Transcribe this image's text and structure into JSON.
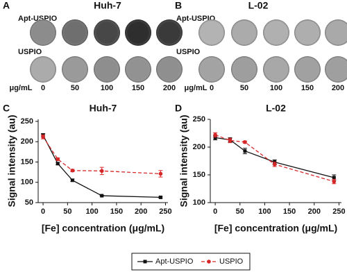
{
  "panels": [
    {
      "letter": "A",
      "title": "Huh-7",
      "rows": [
        "Apt-USPIO",
        "USPIO"
      ],
      "unit": "μg/mL",
      "concentrations": [
        0,
        50,
        100,
        150,
        200
      ]
    },
    {
      "letter": "B",
      "title": "L-02",
      "rows": [
        "Apt-USPIO",
        "USPIO"
      ],
      "unit": "μg/mL",
      "concentrations": [
        0,
        50,
        100,
        150,
        200
      ]
    }
  ],
  "chart_data": [
    {
      "type": "line",
      "panel": "C",
      "title": "Huh-7",
      "x_label": "[Fe] concentration (μg/mL)",
      "y_label": "Signal intensity (au)",
      "x": [
        0,
        30,
        60,
        120,
        240
      ],
      "xlim": [
        -10,
        255
      ],
      "xticks": [
        0,
        50,
        100,
        150,
        200,
        250
      ],
      "ylim": [
        50,
        255
      ],
      "yticks": [
        50,
        100,
        150,
        200,
        250
      ],
      "series": [
        {
          "name": "Apt-USPIO",
          "color": "#111111",
          "marker": "square",
          "linestyle": "solid",
          "values": [
            216,
            146,
            105,
            67,
            63
          ],
          "errors": [
            4,
            3,
            3,
            1,
            2
          ]
        },
        {
          "name": "USPIO",
          "color": "#d62728",
          "marker": "circle",
          "linestyle": "dashed",
          "values": [
            212,
            157,
            129,
            128,
            121
          ],
          "errors": [
            5,
            3,
            3,
            9,
            8
          ]
        }
      ]
    },
    {
      "type": "line",
      "panel": "D",
      "title": "L-02",
      "x_label": "[Fe] concentration (μg/mL)",
      "y_label": "Signal intensity (au)",
      "x": [
        0,
        30,
        60,
        120,
        240
      ],
      "xlim": [
        -10,
        255
      ],
      "xticks": [
        0,
        50,
        100,
        150,
        200,
        250
      ],
      "ylim": [
        100,
        250
      ],
      "yticks": [
        100,
        150,
        200,
        250
      ],
      "series": [
        {
          "name": "Apt-USPIO",
          "color": "#111111",
          "marker": "square",
          "linestyle": "solid",
          "values": [
            217,
            213,
            193,
            173,
            145
          ],
          "errors": [
            4,
            4,
            5,
            4,
            5
          ]
        },
        {
          "name": "USPIO",
          "color": "#d62728",
          "marker": "circle",
          "linestyle": "dashed",
          "values": [
            222,
            212,
            209,
            169,
            138
          ],
          "errors": [
            4,
            4,
            2,
            4,
            4
          ]
        }
      ]
    }
  ]
}
